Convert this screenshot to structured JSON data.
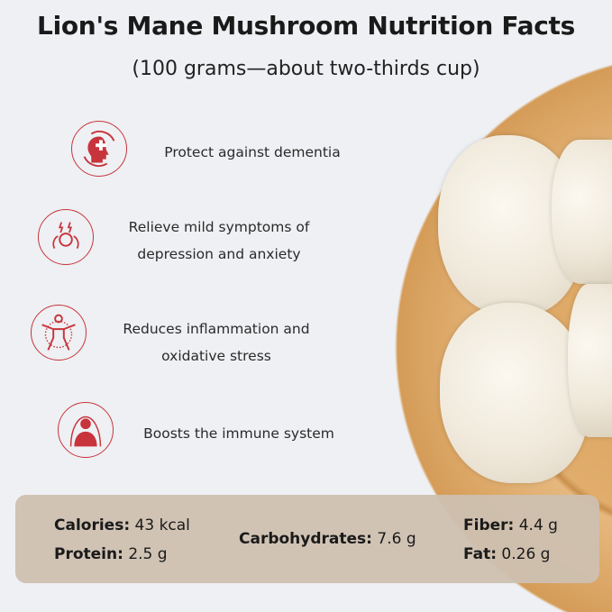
{
  "title": "Lion's Mane Mushroom Nutrition Facts",
  "subtitle": "(100 grams—about two-thirds cup)",
  "benefits": [
    {
      "icon": "head-medical-cross-icon",
      "lines": [
        "Protect against dementia"
      ]
    },
    {
      "icon": "stress-head-icon",
      "lines": [
        "Relieve mild symptoms of",
        "depression and anxiety"
      ]
    },
    {
      "icon": "body-circle-icon",
      "lines": [
        "Reduces inflammation and",
        "oxidative stress"
      ]
    },
    {
      "icon": "human-body-aura-icon",
      "lines": [
        "Boosts the immune system"
      ]
    }
  ],
  "nutrition": {
    "calories": {
      "label": "Calories:",
      "value": "43 kcal"
    },
    "protein": {
      "label": "Protein:",
      "value": "2.5 g"
    },
    "carbohydrates": {
      "label": "Carbohydrates:",
      "value": "7.6 g"
    },
    "fiber": {
      "label": "Fiber:",
      "value": "4.4 g"
    },
    "fat": {
      "label": "Fat:",
      "value": "0.26 g"
    }
  },
  "colors": {
    "accent": "#c8343c",
    "panel": "#cdc0b0",
    "plate": "#d9a15c"
  }
}
